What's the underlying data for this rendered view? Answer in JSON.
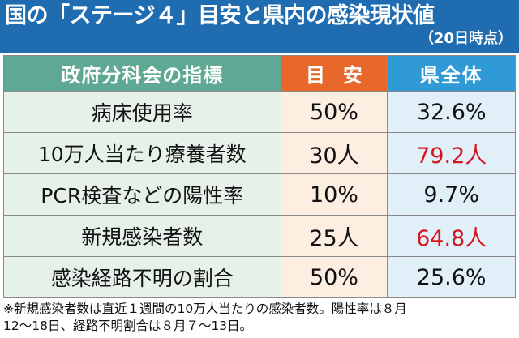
{
  "header": {
    "title": "国の「ステージ４」目安と県内の感染現状値",
    "subtitle": "（20日時点）"
  },
  "table": {
    "headers": {
      "indicator": "政府分科会の指標",
      "target": "目安",
      "prefecture": "県全体"
    },
    "rows": [
      {
        "indicator": "病床使用率",
        "target": "50%",
        "prefecture": "32.6%",
        "exceeds": false
      },
      {
        "indicator": "10万人当たり療養者数",
        "target": "30人",
        "prefecture": "79.2人",
        "exceeds": true
      },
      {
        "indicator": "PCR検査などの陽性率",
        "target": "10%",
        "prefecture": "9.7%",
        "exceeds": false
      },
      {
        "indicator": "新規感染者数",
        "target": "25人",
        "prefecture": "64.8人",
        "exceeds": true
      },
      {
        "indicator": "感染経路不明の割合",
        "target": "50%",
        "prefecture": "25.6%",
        "exceeds": false
      }
    ]
  },
  "note": {
    "line1": "※新規感染者数は直近１週間の10万人当たりの感染者数。陽性率は８月",
    "line2": "12～18日、経路不明割合は８月７～13日。"
  },
  "colors": {
    "header_bg": "#1f6db0",
    "indicator_header": "#5fa893",
    "target_header": "#e8672a",
    "prefecture_header": "#2f9ad6",
    "alert_text": "#d8151d"
  }
}
